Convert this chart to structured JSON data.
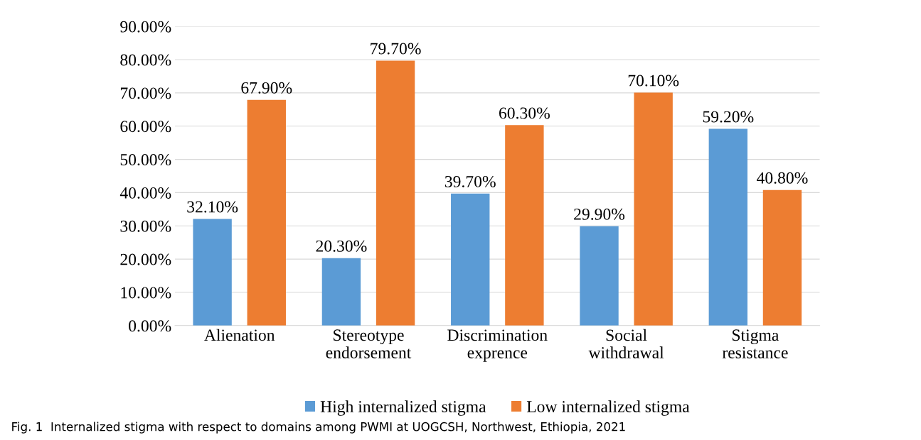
{
  "chart_data": {
    "type": "bar",
    "categories": [
      "Alienation",
      "Stereotype\nendorsement",
      "Discrimination\nexprence",
      "Social\nwithdrawal",
      "Stigma\nresistance"
    ],
    "series": [
      {
        "name": "High internalized stigma",
        "color": "#5b9bd5",
        "values": [
          32.1,
          20.3,
          39.7,
          29.9,
          59.2
        ],
        "value_labels": [
          "32.10%",
          "20.30%",
          "39.70%",
          "29.90%",
          "59.20%"
        ]
      },
      {
        "name": "Low internalized stigma",
        "color": "#ed7d31",
        "values": [
          67.9,
          79.7,
          60.3,
          70.1,
          40.8
        ],
        "value_labels": [
          "67.90%",
          "79.70%",
          "60.30%",
          "70.10%",
          "40.80%"
        ]
      }
    ],
    "ylim": [
      0,
      90
    ],
    "yticks": [
      {
        "value": 0,
        "label": "0.00%"
      },
      {
        "value": 10,
        "label": "10.00%"
      },
      {
        "value": 20,
        "label": "20.00%"
      },
      {
        "value": 30,
        "label": "30.00%"
      },
      {
        "value": 40,
        "label": "40.00%"
      },
      {
        "value": 50,
        "label": "50.00%"
      },
      {
        "value": 60,
        "label": "60.00%"
      },
      {
        "value": 70,
        "label": "70.00%"
      },
      {
        "value": 80,
        "label": "80.00%"
      },
      {
        "value": 90,
        "label": "90.00%"
      }
    ],
    "grid": "y",
    "legend": "bottom",
    "annotations": [
      "Fig. 1  Internalized stigma with respect to domains among PWMI at UOGCSH, Northwest, Ethiopia, 2021"
    ]
  }
}
